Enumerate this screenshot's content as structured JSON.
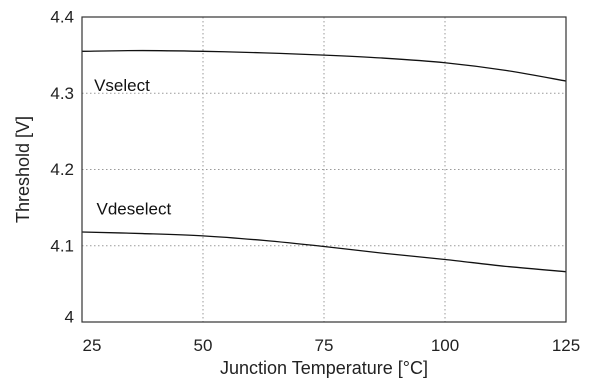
{
  "chart_data": {
    "type": "line",
    "title": "",
    "xlabel": "Junction Temperature [°C]",
    "ylabel": "Threshold [V]",
    "xlim": [
      25,
      125
    ],
    "ylim": [
      4.0,
      4.4
    ],
    "grid": true,
    "x_ticks": [
      25,
      50,
      75,
      100,
      125
    ],
    "x_tick_labels": [
      "25",
      "50",
      "75",
      "100",
      "125"
    ],
    "y_ticks": [
      4.0,
      4.1,
      4.2,
      4.3,
      4.4
    ],
    "y_tick_labels": [
      "4",
      "4.1",
      "4.2",
      "4.3",
      "4.4"
    ],
    "series": [
      {
        "name": "Vselect",
        "color": "#111111",
        "x": [
          25,
          37.5,
          50,
          62.5,
          75,
          87.5,
          100,
          112.5,
          125
        ],
        "y": [
          4.355,
          4.356,
          4.355,
          4.353,
          4.35,
          4.346,
          4.34,
          4.33,
          4.316
        ]
      },
      {
        "name": "Vdeselect",
        "color": "#111111",
        "x": [
          25,
          37.5,
          50,
          62.5,
          75,
          87.5,
          100,
          112.5,
          125
        ],
        "y": [
          4.118,
          4.116,
          4.113,
          4.107,
          4.099,
          4.09,
          4.082,
          4.073,
          4.066
        ]
      }
    ],
    "annotations": [
      {
        "text": "Vselect",
        "x": 27.5,
        "y": 4.31
      },
      {
        "text": "Vdeselect",
        "x": 28,
        "y": 4.148
      }
    ]
  }
}
